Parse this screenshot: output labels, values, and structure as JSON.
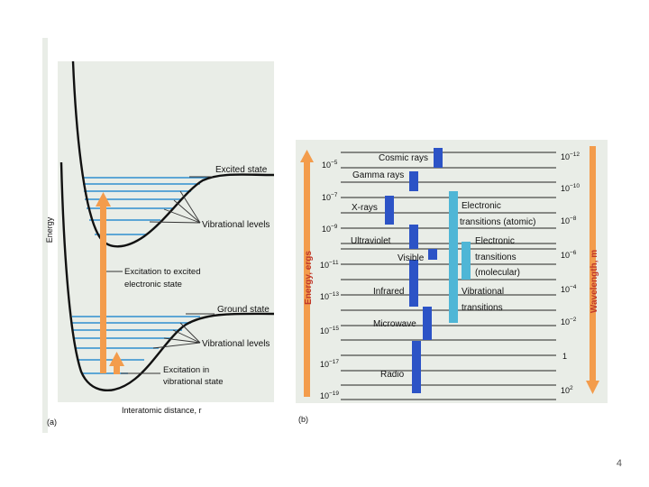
{
  "colors": {
    "panel_bg": "#e9ede7",
    "curve": "#111111",
    "level": "#2f8fcf",
    "arrow": "#f39c4c",
    "band_dark": "#2c53c6",
    "band_light": "#4fb6d6"
  },
  "panel_a": {
    "y_axis_label": "Energy",
    "x_axis_label": "Interatomic distance, r",
    "caption": "(a)",
    "annotations": {
      "excited_state": "Excited state",
      "vibrational_levels_upper": "Vibrational levels",
      "excitation_electronic_line1": "Excitation to excited",
      "excitation_electronic_line2": "electronic state",
      "ground_state": "Ground state",
      "vibrational_levels_lower": "Vibrational levels",
      "excitation_vibrational_line1": "Excitation in",
      "excitation_vibrational_line2": "vibrational state"
    }
  },
  "panel_b": {
    "caption": "(b)",
    "energy_axis_label": "Energy, ergs",
    "wavelength_axis_label": "Wavelength, m",
    "energy_ticks": [
      {
        "base": "10",
        "exp": "−5"
      },
      {
        "base": "10",
        "exp": "−7"
      },
      {
        "base": "10",
        "exp": "−9"
      },
      {
        "base": "10",
        "exp": "−11"
      },
      {
        "base": "10",
        "exp": "−13"
      },
      {
        "base": "10",
        "exp": "−15"
      },
      {
        "base": "10",
        "exp": "−17"
      },
      {
        "base": "10",
        "exp": "−19"
      }
    ],
    "wavelength_ticks": [
      {
        "base": "10",
        "exp": "−12"
      },
      {
        "base": "10",
        "exp": "−10"
      },
      {
        "base": "10",
        "exp": "−8"
      },
      {
        "base": "10",
        "exp": "−6"
      },
      {
        "base": "10",
        "exp": "−4"
      },
      {
        "base": "10",
        "exp": "−2"
      },
      {
        "base": "1",
        "exp": ""
      },
      {
        "base": "10",
        "exp": "2"
      }
    ],
    "radiation_types": [
      "Cosmic rays",
      "Gamma rays",
      "X-rays",
      "Ultraviolet",
      "Visible",
      "Infrared",
      "Microwave",
      "Radio"
    ],
    "transitions": [
      {
        "line1": "Electronic",
        "line2": "transitions (atomic)"
      },
      {
        "line1": "Electronic",
        "line2": "transitions",
        "line3": "(molecular)"
      },
      {
        "line1": "Vibrational",
        "line2": "transitions"
      }
    ]
  },
  "slide_number": "4"
}
